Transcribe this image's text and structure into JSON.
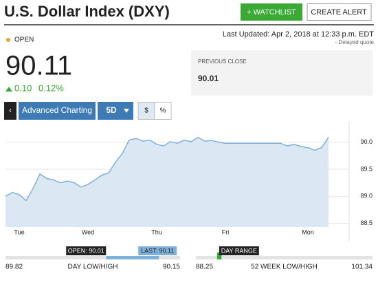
{
  "header": {
    "title": "U.S. Dollar Index (DXY)",
    "watchlist_button": "+ WATCHLIST",
    "alert_button": "CREATE ALERT"
  },
  "quote": {
    "status": "OPEN",
    "last_updated": "Last Updated: Apr 2, 2018 at 12:33 p.m. EDT",
    "delayed": "- Delayed quote",
    "price": "90.11",
    "change": "0.10",
    "change_pct": "0.12%",
    "previous_close": {
      "label": "PREVIOUS CLOSE",
      "value": "90.01"
    }
  },
  "toolbar": {
    "advanced": "Advanced Charting",
    "range": "5D",
    "dollar": "$",
    "percent": "%"
  },
  "chart_data": {
    "type": "line",
    "color": "#7fb0da",
    "fill": "#dbe7f2",
    "values": [
      89.0,
      89.07,
      89.03,
      88.92,
      89.14,
      89.41,
      89.33,
      89.3,
      89.25,
      89.28,
      89.25,
      89.17,
      89.22,
      89.3,
      89.39,
      89.43,
      89.63,
      89.79,
      90.04,
      90.07,
      90.02,
      90.04,
      89.96,
      89.93,
      90.01,
      89.98,
      90.04,
      90.01,
      90.09,
      90.02,
      90.03,
      90.0,
      89.98,
      89.98,
      89.98,
      89.98,
      89.98,
      89.98,
      89.98,
      89.98,
      89.98,
      89.93,
      89.96,
      89.92,
      89.9,
      89.85,
      89.9,
      90.09
    ],
    "xlim": [
      0,
      50
    ],
    "xticks": [
      {
        "value": 2,
        "label": "Tue"
      },
      {
        "value": 12,
        "label": "Wed"
      },
      {
        "value": 22,
        "label": "Thu"
      },
      {
        "value": 32,
        "label": "Fri"
      },
      {
        "value": 44,
        "label": "Mon"
      }
    ],
    "ylim": [
      88.43,
      90.39
    ],
    "yticks": [
      88.5,
      {
        "value": 89,
        "label": "89.0"
      },
      89.5,
      {
        "value": 90,
        "label": "90.0"
      }
    ],
    "grid": true
  },
  "ranges": {
    "day": {
      "label": "DAY LOW/HIGH",
      "low": 89.82,
      "high": 90.15,
      "open": {
        "value": 90.01,
        "label": "OPEN: 90.01"
      },
      "last": {
        "value": 90.11,
        "label": "LAST: 90.11"
      }
    },
    "week": {
      "label": "52 WEEK LOW/HIGH",
      "low": 88.25,
      "high": 101.34,
      "marker_label": "DAY RANGE"
    }
  }
}
